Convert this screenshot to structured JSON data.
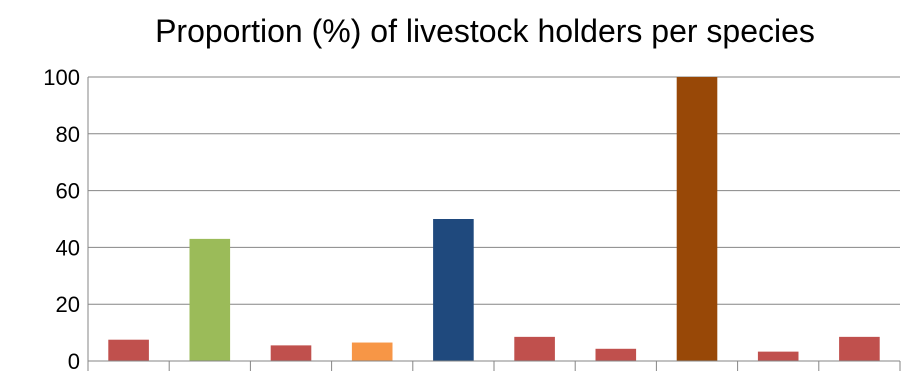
{
  "chart_data": {
    "type": "bar",
    "title": "Proportion (%) of livestock holders per species",
    "xlabel": "",
    "ylabel": "",
    "ylim": [
      0,
      100
    ],
    "yticks": [
      0,
      20,
      40,
      60,
      80,
      100
    ],
    "grid": true,
    "legend": "none",
    "categories": [
      "",
      "",
      "",
      "",
      "",
      "",
      "",
      "",
      "",
      ""
    ],
    "values": [
      7.5,
      43,
      5.5,
      6.5,
      50,
      8.5,
      4.3,
      100,
      3.3,
      8.5
    ],
    "colors": [
      "#c0504d",
      "#9bbb59",
      "#c0504d",
      "#f79646",
      "#1f497d",
      "#c0504d",
      "#c0504d",
      "#984807",
      "#c0504d",
      "#c0504d"
    ]
  }
}
